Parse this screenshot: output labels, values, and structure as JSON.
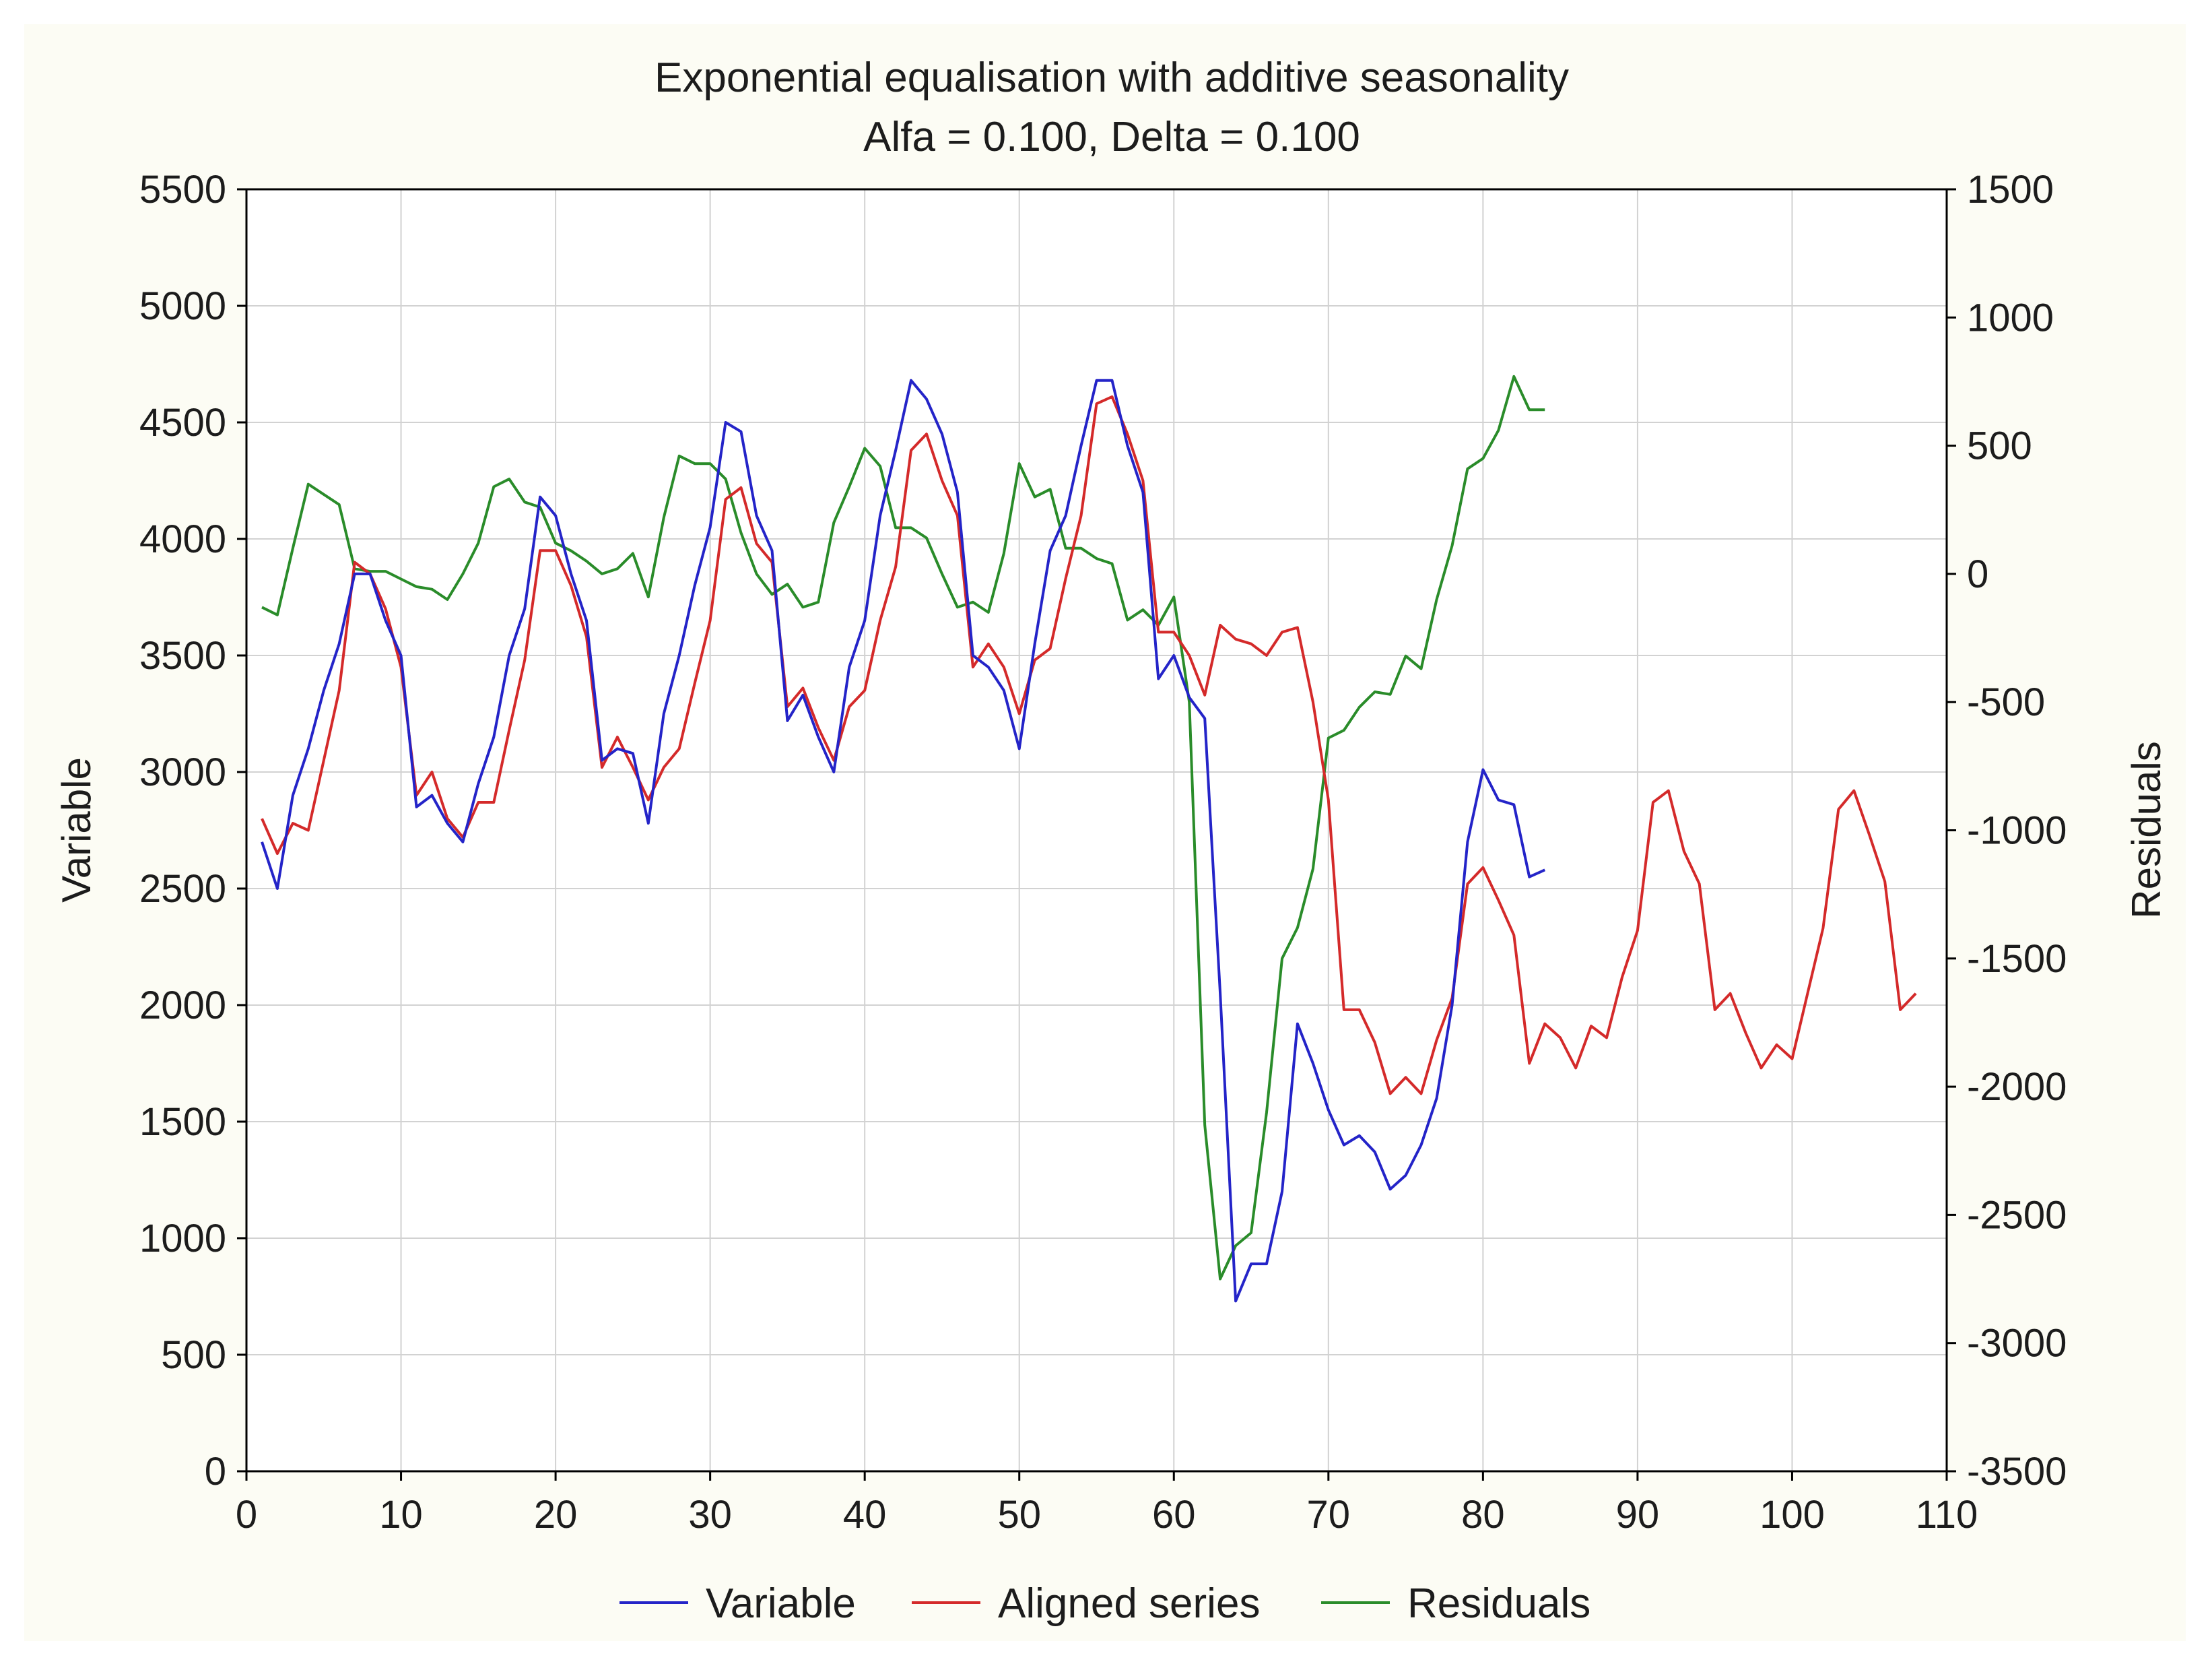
{
  "chart_data": {
    "type": "line",
    "title": "Exponential equalisation with additive seasonality",
    "subtitle": "Alfa = 0.100, Delta = 0.100",
    "xlabel": "",
    "ylabel_left": "Variable",
    "ylabel_right": "Residuals",
    "xlim": [
      0,
      110
    ],
    "ylim_left": [
      0,
      5500
    ],
    "ylim_right": [
      -3500,
      1500
    ],
    "grid": true,
    "legend_position": "bottom",
    "x_ticks": [
      "0",
      "10",
      "20",
      "30",
      "40",
      "50",
      "60",
      "70",
      "80",
      "90",
      "100",
      "110"
    ],
    "x_tick_values": [
      0,
      10,
      20,
      30,
      40,
      50,
      60,
      70,
      80,
      90,
      100,
      110
    ],
    "y_left_ticks": [
      "0",
      "500",
      "1000",
      "1500",
      "2000",
      "2500",
      "3000",
      "3500",
      "4000",
      "4500",
      "5000",
      "5500"
    ],
    "y_left_tick_values": [
      0,
      500,
      1000,
      1500,
      2000,
      2500,
      3000,
      3500,
      4000,
      4500,
      5000,
      5500
    ],
    "y_right_ticks": [
      "-3500",
      "-3000",
      "-2500",
      "-2000",
      "-1500",
      "-1000",
      "-500",
      "0",
      "500",
      "1000",
      "1500"
    ],
    "y_right_tick_values": [
      -3500,
      -3000,
      -2500,
      -2000,
      -1500,
      -1000,
      -500,
      0,
      500,
      1000,
      1500
    ],
    "series": [
      {
        "name": "Variable",
        "axis": "left",
        "color": "#2424c8",
        "x": [
          1,
          2,
          3,
          4,
          5,
          6,
          7,
          8,
          9,
          10,
          11,
          12,
          13,
          14,
          15,
          16,
          17,
          18,
          19,
          20,
          21,
          22,
          23,
          24,
          25,
          26,
          27,
          28,
          29,
          30,
          31,
          32,
          33,
          34,
          35,
          36,
          37,
          38,
          39,
          40,
          41,
          42,
          43,
          44,
          45,
          46,
          47,
          48,
          49,
          50,
          51,
          52,
          53,
          54,
          55,
          56,
          57,
          58,
          59,
          60,
          61,
          62,
          63,
          64,
          65,
          66,
          67,
          68,
          69,
          70,
          71,
          72,
          73,
          74,
          75,
          76,
          77,
          78,
          79,
          80,
          81,
          82,
          83,
          84
        ],
        "values": [
          2700,
          2500,
          2900,
          3100,
          3350,
          3550,
          3850,
          3850,
          3650,
          3500,
          2850,
          2900,
          2780,
          2700,
          2950,
          3150,
          3500,
          3700,
          4180,
          4100,
          3850,
          3650,
          3050,
          3100,
          3080,
          2780,
          3250,
          3500,
          3800,
          4050,
          4500,
          4460,
          4100,
          3950,
          3220,
          3330,
          3150,
          3000,
          3450,
          3650,
          4100,
          4380,
          4680,
          4600,
          4450,
          4200,
          3500,
          3450,
          3350,
          3100,
          3550,
          3950,
          4100,
          4400,
          4680,
          4680,
          4400,
          4200,
          3400,
          3500,
          3320,
          3230,
          2050,
          730,
          890,
          890,
          1200,
          1920,
          1750,
          1550,
          1400,
          1440,
          1370,
          1210,
          1270,
          1400,
          1600,
          2000,
          2700,
          3010,
          2880,
          2860,
          2550,
          2580
        ]
      },
      {
        "name": "Aligned series",
        "axis": "left",
        "color": "#d42a2a",
        "x": [
          1,
          2,
          3,
          4,
          5,
          6,
          7,
          8,
          9,
          10,
          11,
          12,
          13,
          14,
          15,
          16,
          17,
          18,
          19,
          20,
          21,
          22,
          23,
          24,
          25,
          26,
          27,
          28,
          29,
          30,
          31,
          32,
          33,
          34,
          35,
          36,
          37,
          38,
          39,
          40,
          41,
          42,
          43,
          44,
          45,
          46,
          47,
          48,
          49,
          50,
          51,
          52,
          53,
          54,
          55,
          56,
          57,
          58,
          59,
          60,
          61,
          62,
          63,
          64,
          65,
          66,
          67,
          68,
          69,
          70,
          71,
          72,
          73,
          74,
          75,
          76,
          77,
          78,
          79,
          80,
          81,
          82,
          83,
          84,
          85,
          86,
          87,
          88,
          89,
          90,
          91,
          92,
          93,
          94,
          95,
          96,
          97,
          98,
          99,
          100,
          101,
          102,
          103,
          104,
          105,
          106,
          107,
          108
        ],
        "values": [
          2800,
          2650,
          2780,
          2750,
          3050,
          3350,
          3900,
          3850,
          3700,
          3450,
          2900,
          3000,
          2800,
          2720,
          2870,
          2870,
          3180,
          3480,
          3950,
          3950,
          3800,
          3580,
          3020,
          3150,
          3020,
          2880,
          3020,
          3100,
          3380,
          3650,
          4170,
          4220,
          3980,
          3900,
          3280,
          3360,
          3190,
          3050,
          3280,
          3350,
          3650,
          3880,
          4380,
          4450,
          4250,
          4100,
          3450,
          3550,
          3450,
          3250,
          3480,
          3530,
          3830,
          4100,
          4580,
          4610,
          4450,
          4250,
          3600,
          3600,
          3500,
          3330,
          3630,
          3570,
          3550,
          3500,
          3600,
          3620,
          3300,
          2880,
          1980,
          1980,
          1840,
          1620,
          1690,
          1620,
          1850,
          2030,
          2520,
          2590,
          2450,
          2300,
          1750,
          1920,
          1860,
          1730,
          1910,
          1860,
          2120,
          2320,
          2870,
          2920,
          2660,
          2520,
          1980,
          2050,
          1880,
          1730,
          1830,
          1770,
          2050,
          2330,
          2840,
          2920,
          2730,
          2530,
          1980,
          2050
        ]
      },
      {
        "name": "Residuals",
        "axis": "right",
        "color": "#2a8c2a",
        "x": [
          1,
          2,
          3,
          4,
          5,
          6,
          7,
          8,
          9,
          10,
          11,
          12,
          13,
          14,
          15,
          16,
          17,
          18,
          19,
          20,
          21,
          22,
          23,
          24,
          25,
          26,
          27,
          28,
          29,
          30,
          31,
          32,
          33,
          34,
          35,
          36,
          37,
          38,
          39,
          40,
          41,
          42,
          43,
          44,
          45,
          46,
          47,
          48,
          49,
          50,
          51,
          52,
          53,
          54,
          55,
          56,
          57,
          58,
          59,
          60,
          61,
          62,
          63,
          64,
          65,
          66,
          67,
          68,
          69,
          70,
          71,
          72,
          73,
          74,
          75,
          76,
          77,
          78,
          79,
          80,
          81,
          82,
          83,
          84
        ],
        "values": [
          -130,
          -160,
          100,
          350,
          310,
          270,
          20,
          10,
          10,
          -20,
          -50,
          -60,
          -100,
          0,
          120,
          340,
          370,
          280,
          260,
          120,
          90,
          50,
          0,
          20,
          80,
          -90,
          220,
          460,
          430,
          430,
          370,
          160,
          0,
          -80,
          -40,
          -130,
          -110,
          200,
          340,
          490,
          420,
          180,
          180,
          140,
          0,
          -130,
          -110,
          -150,
          80,
          430,
          300,
          330,
          100,
          100,
          60,
          40,
          -180,
          -140,
          -200,
          -90,
          -500,
          -2150,
          -2750,
          -2620,
          -2570,
          -2100,
          -1500,
          -1380,
          -1150,
          -640,
          -610,
          -520,
          -460,
          -470,
          -320,
          -370,
          -100,
          110,
          410,
          450,
          560,
          770,
          640,
          640
        ]
      }
    ]
  },
  "legend": {
    "items": [
      {
        "label": "Variable",
        "color": "#2424c8"
      },
      {
        "label": "Aligned series",
        "color": "#d42a2a"
      },
      {
        "label": "Residuals",
        "color": "#2a8c2a"
      }
    ]
  },
  "colors": {
    "frame_background": "#fcfcf4",
    "plot_background": "#ffffff",
    "grid": "#d2d2d2",
    "axis": "#000000"
  }
}
